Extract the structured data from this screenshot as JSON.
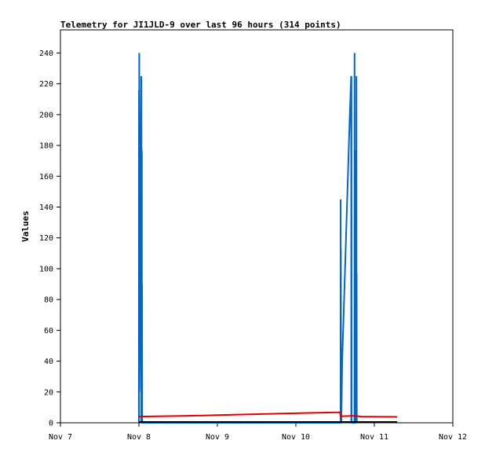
{
  "chart_data": {
    "type": "line",
    "title": "Telemetry for JI1JLD-9 over last 96 hours (314 points)",
    "xlabel": "",
    "ylabel": "Values",
    "x_ticks": [
      "Nov 7",
      "Nov 8",
      "Nov 9",
      "Nov 10",
      "Nov 11",
      "Nov 12"
    ],
    "xlim": [
      "Nov 7 00:00",
      "Nov 12 00:00"
    ],
    "ylim": [
      0,
      255
    ],
    "y_ticks": [
      0,
      20,
      40,
      60,
      80,
      100,
      120,
      140,
      160,
      180,
      200,
      220,
      240
    ],
    "grid": false,
    "series": [
      {
        "color": "#0066cc",
        "points": [
          [
            "Nov 7 23:59",
            0
          ],
          [
            "Nov 8 00:01",
            216
          ],
          [
            "Nov 8 00:03",
            0
          ],
          [
            "Nov 8 00:06",
            240
          ],
          [
            "Nov 8 00:09",
            20
          ],
          [
            "Nov 8 00:14",
            40
          ],
          [
            "Nov 8 00:19",
            80
          ],
          [
            "Nov 8 00:25",
            120
          ],
          [
            "Nov 8 00:31",
            160
          ],
          [
            "Nov 8 00:37",
            200
          ],
          [
            "Nov 8 00:42",
            225
          ],
          [
            "Nov 8 00:44",
            0
          ],
          [
            "Nov 8 00:46",
            224
          ],
          [
            "Nov 8 00:48",
            150
          ],
          [
            "Nov 8 00:50",
            178
          ],
          [
            "Nov 8 00:52",
            0
          ],
          [
            "Nov 8 00:54",
            176
          ],
          [
            "Nov 8 00:56",
            0
          ],
          [
            "Nov 8 00:58",
            90
          ],
          [
            "Nov 8 01:00",
            0
          ],
          [
            "Nov 10 13:40",
            0
          ],
          [
            "Nov 10 13:42",
            145
          ],
          [
            "Nov 10 13:44",
            0
          ],
          [
            "Nov 10 13:46",
            113
          ],
          [
            "Nov 10 13:48",
            0
          ],
          [
            "Nov 10 13:52",
            48
          ],
          [
            "Nov 10 13:54",
            0
          ],
          [
            "Nov 10 14:10",
            40
          ],
          [
            "Nov 10 14:45",
            80
          ],
          [
            "Nov 10 15:20",
            120
          ],
          [
            "Nov 10 15:55",
            160
          ],
          [
            "Nov 10 16:30",
            200
          ],
          [
            "Nov 10 16:55",
            225
          ],
          [
            "Nov 10 16:57",
            0
          ],
          [
            "Nov 10 17:00",
            225
          ],
          [
            "Nov 10 17:02",
            0
          ],
          [
            "Nov 10 17:55",
            0
          ],
          [
            "Nov 10 17:57",
            240
          ],
          [
            "Nov 10 18:00",
            0
          ],
          [
            "Nov 10 18:02",
            155
          ],
          [
            "Nov 10 18:05",
            110
          ],
          [
            "Nov 10 18:08",
            65
          ],
          [
            "Nov 10 18:10",
            0
          ],
          [
            "Nov 10 18:13",
            0
          ],
          [
            "Nov 10 18:15",
            145
          ],
          [
            "Nov 10 18:18",
            0
          ],
          [
            "Nov 10 18:21",
            177
          ],
          [
            "Nov 10 18:23",
            0
          ],
          [
            "Nov 10 18:26",
            113
          ],
          [
            "Nov 10 18:28",
            0
          ],
          [
            "Nov 10 18:31",
            225
          ],
          [
            "Nov 10 18:33",
            0
          ],
          [
            "Nov 10 18:36",
            97
          ],
          [
            "Nov 10 18:38",
            0
          ]
        ]
      },
      {
        "color": "#e00000",
        "points": [
          [
            "Nov 8 00:00",
            4.0
          ],
          [
            "Nov 8 15:00",
            4.5
          ],
          [
            "Nov 9 06:00",
            5.3
          ],
          [
            "Nov 9 20:00",
            6.0
          ],
          [
            "Nov 10 13:30",
            6.8
          ],
          [
            "Nov 10 13:40",
            4.2
          ],
          [
            "Nov 10 18:00",
            4.5
          ],
          [
            "Nov 10 20:00",
            4.0
          ],
          [
            "Nov 11 07:00",
            3.8
          ]
        ]
      },
      {
        "color": "#000000",
        "points": [
          [
            "Nov 8 00:00",
            0.5
          ],
          [
            "Nov 11 07:00",
            0.5
          ]
        ]
      }
    ]
  }
}
